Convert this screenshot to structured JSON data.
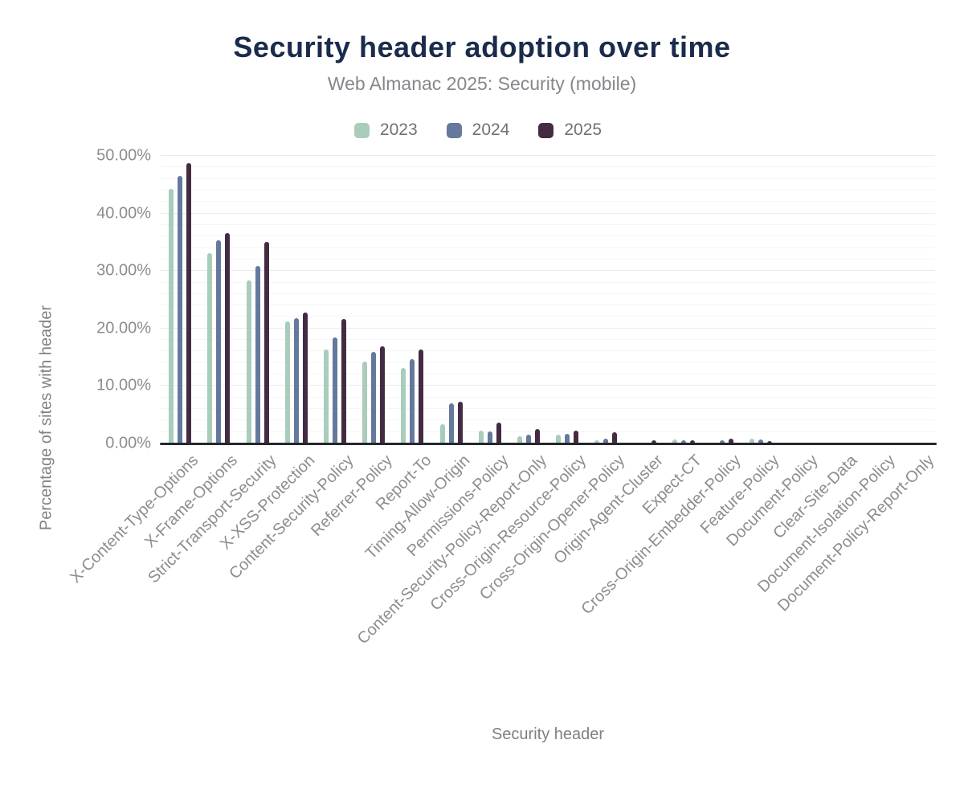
{
  "chart": {
    "title": "Security header adoption over time",
    "subtitle": "Web Almanac 2025: Security (mobile)",
    "xlabel": "Security header",
    "ylabel": "Percentage of sites with header"
  },
  "colors": {
    "title_text": "#1a2b4c",
    "subtitle_text": "#85878c",
    "axis_text": "#8b8d91",
    "axis_line": "#26262e",
    "grid_minor": "#f5f5f7",
    "grid_major": "#ebebee",
    "series_2023": "#a9ccbb",
    "series_2024": "#64799c",
    "series_2025": "#432b42"
  },
  "chart_data": {
    "type": "bar",
    "title": "Security header adoption over time",
    "subtitle": "Web Almanac 2025: Security (mobile)",
    "xlabel": "Security header",
    "ylabel": "Percentage of sites with header",
    "units": "percent of sites",
    "ylim": [
      0,
      50
    ],
    "y_major_step": 10,
    "y_minor_step": 2,
    "y_tick_labels": [
      "0.00%",
      "10.00%",
      "20.00%",
      "30.00%",
      "40.00%",
      "50.00%"
    ],
    "grid": "horizontal only, minor lines every 2%, major lines every 10%",
    "legend_position": "top-center",
    "x_label_rotation_deg": -45,
    "categories": [
      "X-Content-Type-Options",
      "X-Frame-Options",
      "Strict-Transport-Security",
      "X-XSS-Protection",
      "Content-Security-Policy",
      "Referrer-Policy",
      "Report-To",
      "Timing-Allow-Origin",
      "Permissions-Policy",
      "Content-Security-Policy-Report-Only",
      "Cross-Origin-Resource-Policy",
      "Cross-Origin-Opener-Policy",
      "Origin-Agent-Cluster",
      "Expect-CT",
      "Cross-Origin-Embedder-Policy",
      "Feature-Policy",
      "Document-Policy",
      "Clear-Site-Data",
      "Document-Isolation-Policy",
      "Document-Policy-Report-Only"
    ],
    "series": [
      {
        "name": "2023",
        "color": "#a9ccbb",
        "values": [
          44.3,
          33.1,
          28.4,
          21.3,
          16.3,
          14.2,
          13.1,
          3.4,
          2.2,
          1.3,
          1.5,
          0.6,
          0.1,
          0.7,
          0.1,
          0.8,
          0.2,
          0.1,
          0.05,
          0.1
        ]
      },
      {
        "name": "2024",
        "color": "#64799c",
        "values": [
          46.5,
          35.4,
          30.9,
          21.8,
          18.4,
          15.9,
          14.7,
          7.0,
          2.1,
          1.6,
          1.7,
          0.9,
          0.2,
          0.6,
          0.5,
          0.7,
          0.2,
          0.1,
          0.05,
          0.1
        ]
      },
      {
        "name": "2025",
        "color": "#432b42",
        "values": [
          48.8,
          36.6,
          35.0,
          22.7,
          21.6,
          16.9,
          16.4,
          7.3,
          3.7,
          2.5,
          2.3,
          1.9,
          0.6,
          0.5,
          0.8,
          0.4,
          0.1,
          0.1,
          0.05,
          0.15
        ]
      }
    ]
  }
}
